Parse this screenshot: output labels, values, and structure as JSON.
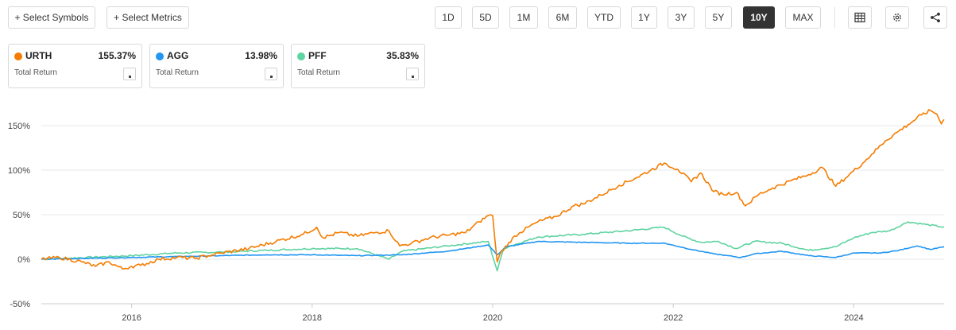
{
  "toolbar": {
    "select_symbols": "+ Select Symbols",
    "select_metrics": "+ Select Metrics",
    "ranges": [
      "1D",
      "5D",
      "1M",
      "6M",
      "YTD",
      "1Y",
      "3Y",
      "5Y",
      "10Y",
      "MAX"
    ],
    "active_range": "10Y",
    "icons": [
      "table-icon",
      "gear-icon",
      "share-icon"
    ]
  },
  "cards": [
    {
      "symbol": "URTH",
      "value": "155.37%",
      "metric": "Total Return",
      "color": "#f57c00"
    },
    {
      "symbol": "AGG",
      "value": "13.98%",
      "metric": "Total Return",
      "color": "#2196f3"
    },
    {
      "symbol": "PFF",
      "value": "35.83%",
      "metric": "Total Return",
      "color": "#5fd3a0"
    }
  ],
  "chart_data": {
    "type": "line",
    "title": "",
    "xlabel": "",
    "ylabel": "",
    "xlim": [
      2015.0,
      2025.0
    ],
    "ylim": [
      -50,
      175
    ],
    "y_ticks": [
      -50,
      0,
      50,
      100,
      150
    ],
    "y_tick_labels": [
      "-50%",
      "0%",
      "50%",
      "100%",
      "150%"
    ],
    "x_ticks": [
      2016,
      2018,
      2020,
      2022,
      2024
    ],
    "x_tick_labels": [
      "2016",
      "2018",
      "2020",
      "2022",
      "2024"
    ],
    "grid": "horizontal",
    "legend": "cards above chart",
    "series": [
      {
        "name": "URTH",
        "color": "#f57c00",
        "x": [
          2015.0,
          2015.2,
          2015.45,
          2015.6,
          2015.75,
          2015.9,
          2016.0,
          2016.1,
          2016.3,
          2016.5,
          2016.7,
          2016.85,
          2017.0,
          2017.3,
          2017.6,
          2017.9,
          2018.05,
          2018.12,
          2018.3,
          2018.5,
          2018.7,
          2018.85,
          2018.97,
          2019.1,
          2019.3,
          2019.5,
          2019.7,
          2019.85,
          2019.95,
          2020.0,
          2020.05,
          2020.1,
          2020.16,
          2020.22,
          2020.3,
          2020.5,
          2020.7,
          2020.9,
          2021.0,
          2021.2,
          2021.4,
          2021.6,
          2021.75,
          2021.9,
          2022.05,
          2022.2,
          2022.3,
          2022.45,
          2022.55,
          2022.7,
          2022.8,
          2022.95,
          2023.1,
          2023.3,
          2023.5,
          2023.65,
          2023.8,
          2023.95,
          2024.1,
          2024.2,
          2024.35,
          2024.5,
          2024.6,
          2024.75,
          2024.85,
          2024.92,
          2024.97,
          2025.0
        ],
        "y": [
          0,
          2,
          -3,
          -8,
          -3,
          -11,
          -8,
          -7,
          0,
          2,
          1,
          4,
          7,
          12,
          20,
          28,
          36,
          24,
          30,
          26,
          30,
          32,
          15,
          18,
          24,
          27,
          30,
          42,
          49,
          49,
          -3,
          10,
          15,
          24,
          30,
          42,
          48,
          60,
          62,
          72,
          83,
          92,
          100,
          108,
          101,
          87,
          97,
          76,
          73,
          75,
          60,
          73,
          80,
          88,
          95,
          103,
          82,
          95,
          108,
          118,
          133,
          144,
          151,
          162,
          167,
          163,
          152,
          157
        ]
      },
      {
        "name": "AGG",
        "color": "#2196f3",
        "x": [
          2015.0,
          2015.5,
          2016.0,
          2016.5,
          2017.0,
          2017.5,
          2018.0,
          2018.5,
          2019.0,
          2019.5,
          2019.95,
          2020.05,
          2020.15,
          2020.5,
          2021.0,
          2021.5,
          2021.9,
          2022.2,
          2022.45,
          2022.75,
          2022.9,
          2023.2,
          2023.5,
          2023.8,
          2024.0,
          2024.3,
          2024.5,
          2024.7,
          2024.85,
          2025.0
        ],
        "y": [
          0,
          1,
          2,
          3,
          4,
          5,
          5,
          4,
          5,
          9,
          16,
          5,
          14,
          20,
          19,
          18,
          18,
          11,
          6,
          2,
          6,
          9,
          4,
          2,
          7,
          7,
          10,
          15,
          11,
          14
        ]
      },
      {
        "name": "PFF",
        "color": "#5fd3a0",
        "x": [
          2015.0,
          2015.5,
          2016.0,
          2016.5,
          2017.0,
          2017.5,
          2018.0,
          2018.5,
          2018.85,
          2019.0,
          2019.5,
          2019.95,
          2020.05,
          2020.12,
          2020.2,
          2020.5,
          2021.0,
          2021.5,
          2021.9,
          2022.1,
          2022.3,
          2022.5,
          2022.7,
          2022.9,
          2023.2,
          2023.5,
          2023.8,
          2024.0,
          2024.2,
          2024.4,
          2024.6,
          2024.8,
          2025.0
        ],
        "y": [
          0,
          2,
          4,
          7,
          8,
          10,
          12,
          12,
          0,
          9,
          15,
          20,
          -13,
          12,
          15,
          25,
          28,
          32,
          36,
          26,
          19,
          20,
          12,
          20,
          18,
          10,
          14,
          24,
          30,
          32,
          42,
          39,
          36
        ]
      }
    ]
  }
}
